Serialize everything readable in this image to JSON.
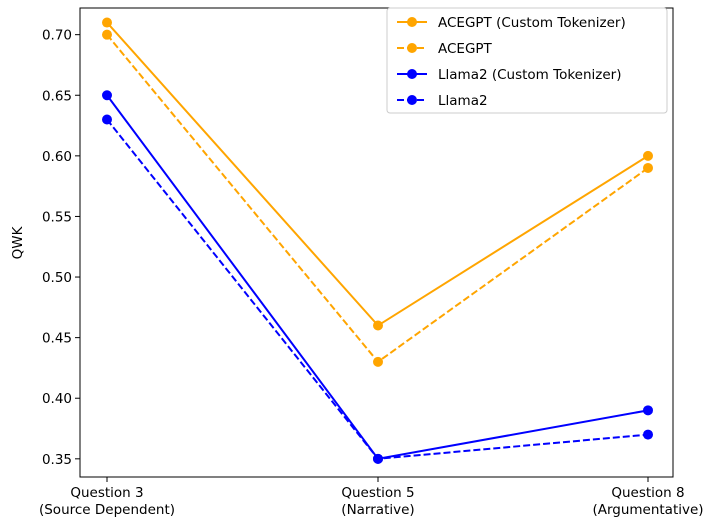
{
  "chart_data": {
    "type": "line",
    "categories": [
      [
        "Question 3",
        "(Source Dependent)"
      ],
      [
        "Question 5",
        "(Narrative)"
      ],
      [
        "Question 8",
        "(Argumentative)"
      ]
    ],
    "ylabel": "QWK",
    "xlabel": "",
    "title": "",
    "ylim": [
      0.335,
      0.722
    ],
    "yticks": [
      "0.35",
      "0.40",
      "0.45",
      "0.50",
      "0.55",
      "0.60",
      "0.65",
      "0.70"
    ],
    "grid": false,
    "legend_position": "top-right",
    "series": [
      {
        "name": "ACEGPT (Custom Tokenizer)",
        "values": [
          0.71,
          0.46,
          0.6
        ],
        "color": "#FFA500",
        "dash": "solid"
      },
      {
        "name": "ACEGPT",
        "values": [
          0.7,
          0.43,
          0.59
        ],
        "color": "#FFA500",
        "dash": "dashed"
      },
      {
        "name": "Llama2 (Custom Tokenizer)",
        "values": [
          0.65,
          0.35,
          0.39
        ],
        "color": "#0000FF",
        "dash": "solid"
      },
      {
        "name": "Llama2",
        "values": [
          0.63,
          0.35,
          0.37
        ],
        "color": "#0000FF",
        "dash": "dashed"
      }
    ]
  }
}
